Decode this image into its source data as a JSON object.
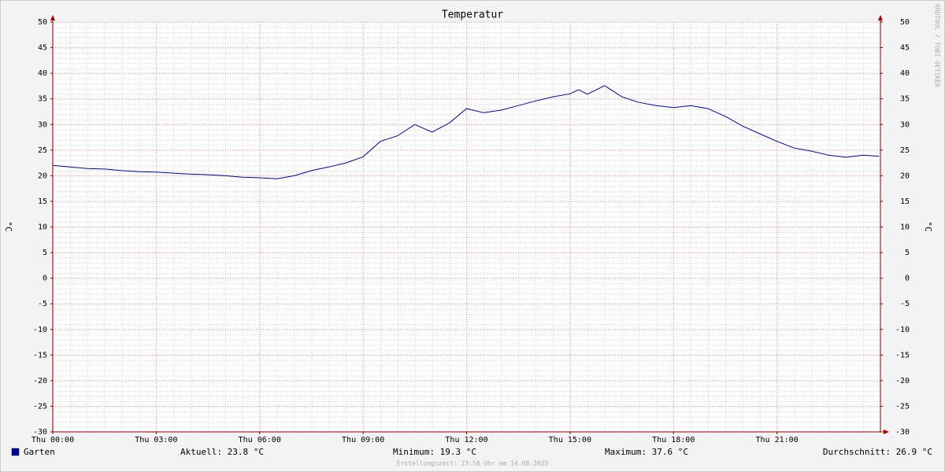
{
  "chart_data": {
    "type": "line",
    "title": "Temperatur",
    "ylabel": "°C",
    "y2label": "°C",
    "watermark": "RRDTOOL / TOBI OETIKER",
    "footer": "Erstellungszeit: 23:58 Uhr am 14.08.2025",
    "xlim": [
      0,
      24
    ],
    "xticks": [
      {
        "value": 0,
        "label": "Thu 00:00"
      },
      {
        "value": 3,
        "label": "Thu 03:00"
      },
      {
        "value": 6,
        "label": "Thu 06:00"
      },
      {
        "value": 9,
        "label": "Thu 09:00"
      },
      {
        "value": 12,
        "label": "Thu 12:00"
      },
      {
        "value": 15,
        "label": "Thu 15:00"
      },
      {
        "value": 18,
        "label": "Thu 18:00"
      },
      {
        "value": 21,
        "label": "Thu 21:00"
      }
    ],
    "ylim": [
      -30,
      50
    ],
    "yticks": [
      -30,
      -25,
      -20,
      -15,
      -10,
      -5,
      0,
      5,
      10,
      15,
      20,
      25,
      30,
      35,
      40,
      45,
      50
    ],
    "y2lim": [
      -30,
      50
    ],
    "y2ticks": [
      -30,
      -25,
      -20,
      -15,
      -10,
      -5,
      0,
      5,
      10,
      15,
      20,
      25,
      30,
      35,
      40,
      45,
      50
    ],
    "grid": true,
    "x": [
      0,
      0.5,
      1,
      1.5,
      2,
      2.5,
      3,
      3.5,
      4,
      4.5,
      5,
      5.5,
      6,
      6.5,
      7,
      7.5,
      8,
      8.5,
      9,
      9.5,
      10,
      10.5,
      11,
      11.5,
      12,
      12.5,
      13,
      13.5,
      14,
      14.5,
      15,
      15.25,
      15.5,
      16,
      16.5,
      17,
      17.5,
      18,
      18.5,
      19,
      19.5,
      20,
      20.5,
      21,
      21.5,
      22,
      22.5,
      23,
      23.5,
      23.96
    ],
    "series": [
      {
        "name": "Garten",
        "color": "#0000a0",
        "values": [
          22.0,
          21.7,
          21.4,
          21.3,
          21.0,
          20.8,
          20.7,
          20.5,
          20.3,
          20.2,
          20.0,
          19.7,
          19.6,
          19.4,
          20.0,
          21.0,
          21.7,
          22.5,
          23.7,
          26.7,
          27.8,
          30.0,
          28.5,
          30.3,
          33.1,
          32.3,
          32.8,
          33.7,
          34.6,
          35.4,
          36.0,
          36.8,
          35.9,
          37.6,
          35.4,
          34.3,
          33.7,
          33.3,
          33.7,
          33.1,
          31.6,
          29.7,
          28.2,
          26.7,
          25.4,
          24.8,
          24.0,
          23.6,
          24.0,
          23.8
        ]
      }
    ],
    "stats": [
      {
        "label": "Aktuell:",
        "value": 23.8,
        "unit": "°C"
      },
      {
        "label": "Minimum:",
        "value": 19.3,
        "unit": "°C"
      },
      {
        "label": "Maximum:",
        "value": 37.6,
        "unit": "°C"
      },
      {
        "label": "Durchschnitt:",
        "value": 26.9,
        "unit": "°C"
      }
    ]
  }
}
